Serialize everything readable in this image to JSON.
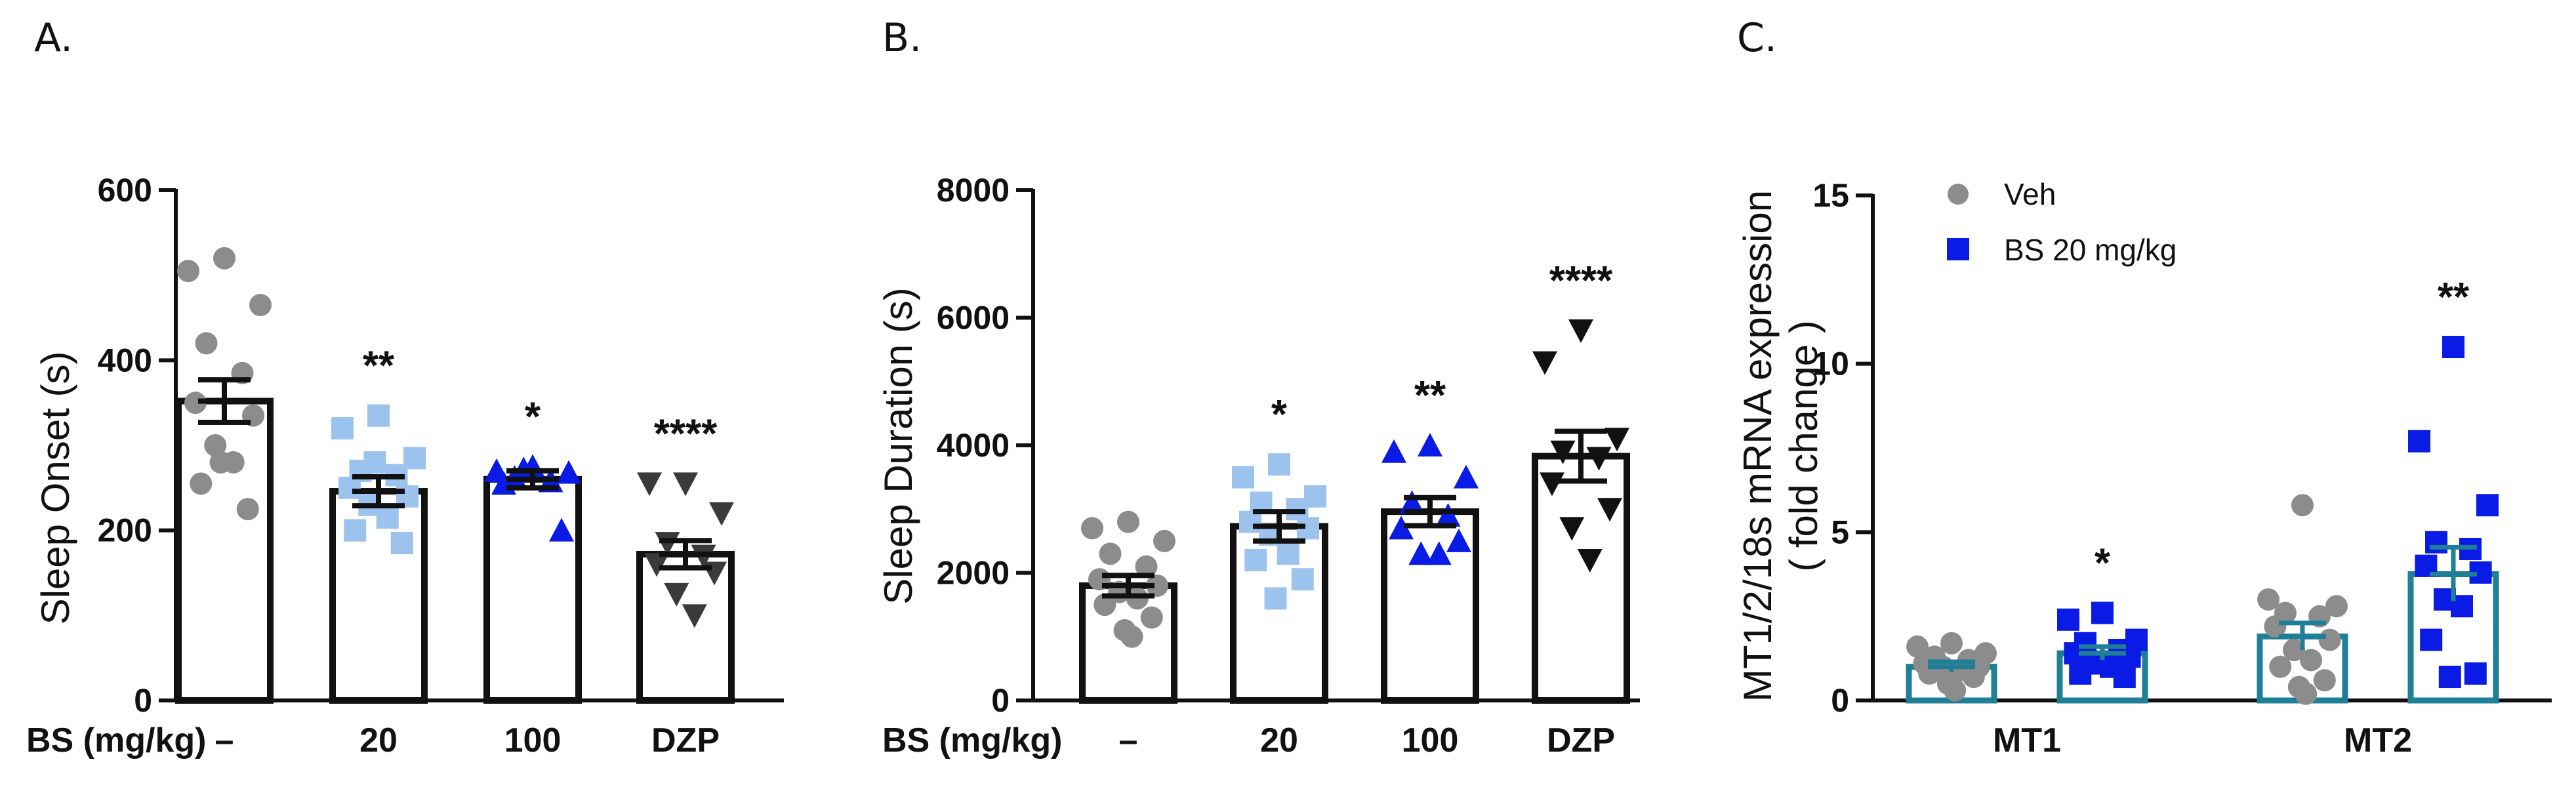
{
  "chart_data": [
    {
      "panel": "A.",
      "type": "bar",
      "ylabel": "Sleep Onset (s)",
      "xlabel": "BS (mg/kg)",
      "ylim": [
        0,
        600
      ],
      "yticks": [
        "0",
        "200",
        "400",
        "600"
      ],
      "categories": [
        "–",
        "20",
        "100",
        "DZP"
      ],
      "means": [
        352,
        246,
        260,
        172
      ],
      "sem": [
        25,
        17,
        10,
        16
      ],
      "significance": [
        "",
        "**",
        "*",
        "****"
      ],
      "points": [
        [
          520,
          505,
          465,
          420,
          385,
          350,
          335,
          300,
          280,
          255,
          225,
          280
        ],
        [
          335,
          320,
          285,
          270,
          265,
          250,
          240,
          230,
          215,
          200,
          185,
          280
        ],
        [
          275,
          270,
          268,
          262,
          258,
          255,
          200,
          272
        ],
        [
          255,
          255,
          220,
          185,
          170,
          160,
          150,
          125,
          100
        ]
      ],
      "marker_colors": [
        "#8c8c8c",
        "#9cc3ee",
        "#0a1be6",
        "#3a3a3a"
      ],
      "marker_shapes": [
        "circle",
        "square",
        "triangle",
        "triangle-down"
      ]
    },
    {
      "panel": "B.",
      "type": "bar",
      "ylabel": "Sleep Duration (s)",
      "xlabel": "BS (mg/kg)",
      "ylim": [
        0,
        8000
      ],
      "yticks": [
        "0",
        "2000",
        "4000",
        "6000",
        "8000"
      ],
      "categories": [
        "–",
        "20",
        "100",
        "DZP"
      ],
      "means": [
        1800,
        2730,
        2960,
        3830
      ],
      "sem": [
        160,
        230,
        220,
        390
      ],
      "significance": [
        "",
        "*",
        "**",
        "****"
      ],
      "points": [
        [
          2800,
          2700,
          2500,
          2300,
          2100,
          1900,
          1800,
          1700,
          1600,
          1500,
          1300,
          1100,
          1000
        ],
        [
          3700,
          3500,
          3200,
          3100,
          3000,
          2800,
          2700,
          2600,
          2300,
          2200,
          1900,
          1600
        ],
        [
          4000,
          3900,
          3500,
          3100,
          2900,
          2700,
          2500,
          2300,
          2300
        ],
        [
          5800,
          5300,
          4100,
          3900,
          3800,
          3400,
          3000,
          2700,
          2200
        ]
      ],
      "marker_colors": [
        "#8c8c8c",
        "#9cc3ee",
        "#0a1be6",
        "#111111"
      ],
      "marker_shapes": [
        "circle",
        "square",
        "triangle",
        "triangle-down"
      ]
    },
    {
      "panel": "C.",
      "type": "bar",
      "ylabel": "MT1/2/18s mRNA expression",
      "ylabel2": "( fold change )",
      "ylim": [
        0,
        15
      ],
      "yticks": [
        "0",
        "5",
        "10",
        "15"
      ],
      "groups": [
        "MT1",
        "MT2"
      ],
      "series": [
        {
          "name": "Veh",
          "color": "#8c8c8c",
          "marker": "circle",
          "means": [
            1.0,
            1.9
          ],
          "sem": [
            0.15,
            0.4
          ],
          "significance": [
            "",
            ""
          ],
          "points": [
            [
              1.7,
              1.6,
              1.4,
              1.3,
              1.2,
              1.1,
              1.0,
              1.0,
              0.9,
              0.8,
              0.7,
              0.5,
              0.3
            ],
            [
              5.8,
              3.0,
              2.8,
              2.6,
              2.5,
              2.2,
              1.8,
              1.5,
              1.2,
              1.0,
              0.6,
              0.4,
              0.2
            ]
          ]
        },
        {
          "name": "BS 20 mg/kg",
          "color": "#0a1be6",
          "marker": "square",
          "means": [
            1.4,
            3.75
          ],
          "sem": [
            0.2,
            0.8
          ],
          "significance": [
            "*",
            "**"
          ],
          "points": [
            [
              2.6,
              2.4,
              1.8,
              1.7,
              1.5,
              1.4,
              1.3,
              1.1,
              1.0,
              0.8,
              0.7
            ],
            [
              10.5,
              7.7,
              5.8,
              4.7,
              4.5,
              4.0,
              3.8,
              3.0,
              2.8,
              1.8,
              0.8,
              0.7
            ]
          ]
        }
      ],
      "legend_position": "top-left",
      "bar_edge_color": "#1f7f96"
    }
  ]
}
